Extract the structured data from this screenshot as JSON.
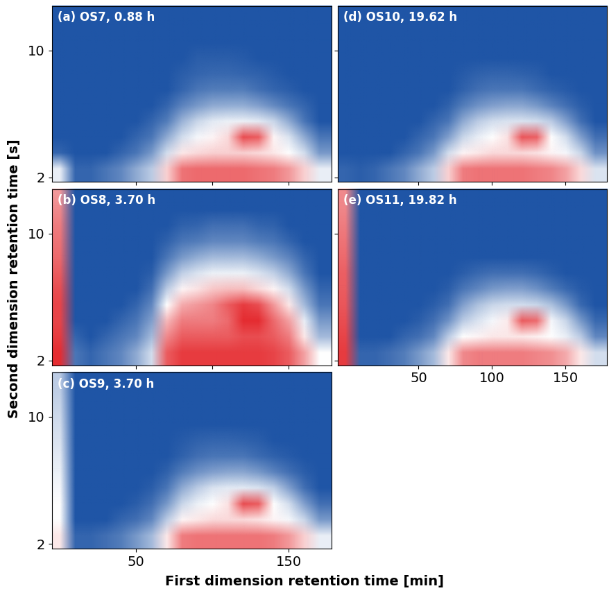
{
  "x_label": "First dimension retention time [min]",
  "y_label": "Second dimension retention time [s]",
  "chart_data": [
    {
      "type": "heatmap",
      "title": "(a) OS7, 0.88 h",
      "tick_labels": "y",
      "xlim": [
        -5,
        178
      ],
      "ylim": [
        1.7,
        12.8
      ],
      "xticks": [
        50,
        100,
        150
      ],
      "yticks": [
        2,
        10
      ],
      "zlim": [
        0,
        100
      ],
      "x_bins": [
        -5,
        5,
        15,
        25,
        35,
        45,
        55,
        65,
        75,
        85,
        95,
        105,
        115,
        125,
        135,
        145,
        155,
        165,
        175
      ],
      "y_bins": [
        2,
        3,
        4,
        5,
        6,
        7,
        8,
        9,
        10,
        11,
        12,
        13
      ],
      "cells": [
        [
          45,
          5,
          5,
          10,
          15,
          25,
          35,
          60,
          80,
          82,
          82,
          82,
          82,
          80,
          78,
          72,
          60,
          45
        ],
        [
          5,
          0,
          0,
          0,
          5,
          10,
          20,
          40,
          55,
          58,
          60,
          60,
          60,
          58,
          55,
          50,
          40,
          20
        ],
        [
          0,
          0,
          0,
          0,
          0,
          5,
          10,
          25,
          40,
          48,
          52,
          58,
          88,
          85,
          52,
          42,
          25,
          10
        ],
        [
          0,
          0,
          0,
          0,
          0,
          0,
          5,
          12,
          28,
          38,
          44,
          46,
          46,
          44,
          38,
          25,
          10,
          0
        ],
        [
          0,
          0,
          0,
          0,
          0,
          0,
          0,
          5,
          14,
          20,
          25,
          26,
          26,
          22,
          16,
          10,
          5,
          0
        ],
        [
          0,
          0,
          0,
          0,
          0,
          0,
          0,
          0,
          5,
          10,
          12,
          12,
          12,
          8,
          5,
          3,
          0,
          0
        ],
        [
          0,
          0,
          0,
          0,
          0,
          0,
          0,
          0,
          3,
          5,
          6,
          6,
          5,
          4,
          2,
          0,
          0,
          0
        ],
        [
          0,
          0,
          0,
          0,
          0,
          0,
          0,
          0,
          0,
          3,
          3,
          3,
          2,
          0,
          0,
          0,
          0,
          0
        ],
        [
          0,
          0,
          0,
          0,
          0,
          0,
          0,
          0,
          0,
          0,
          0,
          0,
          0,
          0,
          0,
          0,
          0,
          0
        ],
        [
          0,
          0,
          0,
          0,
          0,
          0,
          0,
          0,
          0,
          0,
          0,
          0,
          0,
          0,
          0,
          0,
          0,
          0
        ],
        [
          0,
          0,
          0,
          0,
          0,
          0,
          0,
          0,
          0,
          0,
          0,
          0,
          0,
          0,
          0,
          0,
          0,
          0
        ]
      ]
    },
    {
      "type": "heatmap",
      "title": "(b) OS8, 3.70 h",
      "tick_labels": "y",
      "xlim": [
        -5,
        178
      ],
      "ylim": [
        1.7,
        12.8
      ],
      "xticks": [
        50,
        100,
        150
      ],
      "yticks": [
        2,
        10
      ],
      "zlim": [
        0,
        100
      ],
      "x_bins": [
        -5,
        5,
        15,
        25,
        35,
        45,
        55,
        65,
        75,
        85,
        95,
        105,
        115,
        125,
        135,
        145,
        155,
        165,
        175
      ],
      "y_bins": [
        2,
        3,
        4,
        5,
        6,
        7,
        8,
        9,
        10,
        11,
        12,
        13
      ],
      "cells": [
        [
          95,
          10,
          5,
          10,
          15,
          25,
          40,
          85,
          92,
          92,
          92,
          92,
          92,
          92,
          90,
          85,
          70,
          50
        ],
        [
          92,
          5,
          0,
          5,
          10,
          15,
          30,
          75,
          85,
          85,
          85,
          85,
          88,
          88,
          85,
          78,
          55,
          30
        ],
        [
          90,
          0,
          0,
          0,
          5,
          10,
          22,
          65,
          78,
          78,
          78,
          82,
          95,
          95,
          82,
          70,
          45,
          20
        ],
        [
          90,
          0,
          0,
          0,
          0,
          5,
          15,
          50,
          68,
          72,
          76,
          85,
          92,
          88,
          72,
          55,
          30,
          10
        ],
        [
          88,
          0,
          0,
          0,
          0,
          0,
          8,
          35,
          52,
          56,
          62,
          64,
          64,
          58,
          52,
          40,
          20,
          5
        ],
        [
          85,
          0,
          0,
          0,
          0,
          0,
          3,
          20,
          36,
          42,
          46,
          46,
          46,
          42,
          36,
          25,
          10,
          0
        ],
        [
          82,
          0,
          0,
          0,
          0,
          0,
          0,
          10,
          20,
          26,
          30,
          30,
          30,
          26,
          20,
          14,
          5,
          0
        ],
        [
          80,
          0,
          0,
          0,
          0,
          0,
          0,
          4,
          10,
          12,
          15,
          15,
          15,
          12,
          10,
          5,
          0,
          0
        ],
        [
          78,
          0,
          0,
          0,
          0,
          0,
          0,
          0,
          4,
          5,
          8,
          8,
          8,
          5,
          4,
          0,
          0,
          0
        ],
        [
          75,
          0,
          0,
          0,
          0,
          0,
          0,
          0,
          0,
          0,
          0,
          0,
          0,
          0,
          0,
          0,
          0,
          0
        ],
        [
          72,
          0,
          0,
          0,
          0,
          0,
          0,
          0,
          0,
          0,
          0,
          0,
          0,
          0,
          0,
          0,
          0,
          0
        ]
      ]
    },
    {
      "type": "heatmap",
      "title": "(c) OS9, 3.70 h",
      "tick_labels": true,
      "xlim": [
        -5,
        178
      ],
      "ylim": [
        1.7,
        12.8
      ],
      "xticks": [
        50,
        150
      ],
      "yticks": [
        2,
        10
      ],
      "zlim": [
        0,
        100
      ],
      "x_bins": [
        -5,
        5,
        15,
        25,
        35,
        45,
        55,
        65,
        75,
        85,
        95,
        105,
        115,
        125,
        135,
        145,
        155,
        165,
        175
      ],
      "y_bins": [
        2,
        3,
        4,
        5,
        6,
        7,
        8,
        9,
        10,
        11,
        12,
        13
      ],
      "cells": [
        [
          55,
          5,
          5,
          8,
          12,
          20,
          30,
          55,
          78,
          80,
          80,
          80,
          80,
          80,
          78,
          72,
          60,
          45
        ],
        [
          50,
          0,
          0,
          0,
          5,
          8,
          15,
          35,
          52,
          55,
          58,
          58,
          58,
          56,
          52,
          48,
          38,
          20
        ],
        [
          50,
          0,
          0,
          0,
          0,
          3,
          8,
          20,
          38,
          46,
          50,
          56,
          88,
          85,
          50,
          40,
          22,
          8
        ],
        [
          48,
          0,
          0,
          0,
          0,
          0,
          3,
          10,
          25,
          35,
          42,
          44,
          44,
          42,
          36,
          22,
          8,
          0
        ],
        [
          46,
          0,
          0,
          0,
          0,
          0,
          0,
          4,
          12,
          18,
          22,
          24,
          24,
          20,
          14,
          8,
          3,
          0
        ],
        [
          44,
          0,
          0,
          0,
          0,
          0,
          0,
          0,
          4,
          8,
          10,
          10,
          10,
          7,
          4,
          2,
          0,
          0
        ],
        [
          42,
          0,
          0,
          0,
          0,
          0,
          0,
          0,
          2,
          4,
          5,
          5,
          4,
          3,
          0,
          0,
          0,
          0
        ],
        [
          40,
          0,
          0,
          0,
          0,
          0,
          0,
          0,
          0,
          0,
          0,
          0,
          0,
          0,
          0,
          0,
          0,
          0
        ],
        [
          38,
          0,
          0,
          0,
          0,
          0,
          0,
          0,
          0,
          0,
          0,
          0,
          0,
          0,
          0,
          0,
          0,
          0
        ],
        [
          36,
          0,
          0,
          0,
          0,
          0,
          0,
          0,
          0,
          0,
          0,
          0,
          0,
          0,
          0,
          0,
          0,
          0
        ],
        [
          35,
          0,
          0,
          0,
          0,
          0,
          0,
          0,
          0,
          0,
          0,
          0,
          0,
          0,
          0,
          0,
          0,
          0
        ]
      ]
    },
    {
      "type": "heatmap",
      "title": "(d) OS10, 19.62 h",
      "tick_labels": false,
      "xlim": [
        -5,
        178
      ],
      "ylim": [
        1.7,
        12.8
      ],
      "xticks": [
        50,
        100,
        150
      ],
      "yticks": [
        2,
        10
      ],
      "zlim": [
        0,
        100
      ],
      "x_bins": [
        -5,
        5,
        15,
        25,
        35,
        45,
        55,
        65,
        75,
        85,
        95,
        105,
        115,
        125,
        135,
        145,
        155,
        165,
        175
      ],
      "y_bins": [
        2,
        3,
        4,
        5,
        6,
        7,
        8,
        9,
        10,
        11,
        12,
        13
      ],
      "cells": [
        [
          5,
          3,
          5,
          10,
          15,
          25,
          35,
          60,
          78,
          80,
          80,
          80,
          80,
          78,
          76,
          70,
          58,
          42
        ],
        [
          0,
          0,
          0,
          0,
          5,
          10,
          20,
          40,
          52,
          55,
          58,
          58,
          58,
          56,
          52,
          48,
          38,
          18
        ],
        [
          0,
          0,
          0,
          0,
          0,
          5,
          10,
          22,
          38,
          45,
          50,
          56,
          86,
          84,
          50,
          40,
          22,
          8
        ],
        [
          0,
          0,
          0,
          0,
          0,
          0,
          5,
          10,
          25,
          35,
          40,
          42,
          42,
          40,
          35,
          22,
          8,
          0
        ],
        [
          0,
          0,
          0,
          0,
          0,
          0,
          0,
          4,
          12,
          18,
          22,
          24,
          24,
          20,
          14,
          8,
          3,
          0
        ],
        [
          0,
          0,
          0,
          0,
          0,
          0,
          0,
          0,
          4,
          8,
          10,
          10,
          10,
          7,
          4,
          2,
          0,
          0
        ],
        [
          0,
          0,
          0,
          0,
          0,
          0,
          0,
          0,
          2,
          4,
          5,
          5,
          4,
          3,
          0,
          0,
          0,
          0
        ],
        [
          0,
          0,
          0,
          0,
          0,
          0,
          0,
          0,
          0,
          0,
          0,
          0,
          0,
          0,
          0,
          0,
          0,
          0
        ],
        [
          0,
          0,
          0,
          0,
          0,
          0,
          0,
          0,
          0,
          0,
          0,
          0,
          0,
          0,
          0,
          0,
          0,
          0
        ],
        [
          0,
          0,
          0,
          0,
          0,
          0,
          0,
          0,
          0,
          0,
          0,
          0,
          0,
          0,
          0,
          0,
          0,
          0
        ],
        [
          0,
          0,
          0,
          0,
          0,
          0,
          0,
          0,
          0,
          0,
          0,
          0,
          0,
          0,
          0,
          0,
          0,
          0
        ]
      ]
    },
    {
      "type": "heatmap",
      "title": "(e) OS11, 19.82 h",
      "tick_labels": "x",
      "xlim": [
        -5,
        178
      ],
      "ylim": [
        1.7,
        12.8
      ],
      "xticks": [
        50,
        100,
        150
      ],
      "yticks": [
        2,
        10
      ],
      "zlim": [
        0,
        100
      ],
      "x_bins": [
        -5,
        5,
        15,
        25,
        35,
        45,
        55,
        65,
        75,
        85,
        95,
        105,
        115,
        125,
        135,
        145,
        155,
        165,
        175
      ],
      "y_bins": [
        2,
        3,
        4,
        5,
        6,
        7,
        8,
        9,
        10,
        11,
        12,
        13
      ],
      "cells": [
        [
          92,
          5,
          5,
          8,
          12,
          20,
          30,
          55,
          75,
          78,
          78,
          78,
          78,
          76,
          74,
          68,
          55,
          40
        ],
        [
          90,
          0,
          0,
          0,
          5,
          8,
          15,
          35,
          50,
          52,
          55,
          55,
          55,
          53,
          50,
          45,
          35,
          15
        ],
        [
          88,
          0,
          0,
          0,
          0,
          3,
          8,
          18,
          35,
          42,
          48,
          54,
          85,
          82,
          48,
          38,
          20,
          6
        ],
        [
          86,
          0,
          0,
          0,
          0,
          0,
          3,
          8,
          22,
          32,
          38,
          40,
          40,
          38,
          32,
          20,
          6,
          0
        ],
        [
          85,
          0,
          0,
          0,
          0,
          0,
          0,
          3,
          10,
          15,
          20,
          22,
          22,
          18,
          12,
          6,
          2,
          0
        ],
        [
          84,
          0,
          0,
          0,
          0,
          0,
          0,
          0,
          3,
          6,
          8,
          8,
          8,
          6,
          3,
          0,
          0,
          0
        ],
        [
          82,
          0,
          0,
          0,
          0,
          0,
          0,
          0,
          0,
          0,
          0,
          0,
          0,
          0,
          0,
          0,
          0,
          0
        ],
        [
          80,
          0,
          0,
          0,
          0,
          0,
          0,
          0,
          0,
          0,
          0,
          0,
          0,
          0,
          0,
          0,
          0,
          0
        ],
        [
          78,
          0,
          0,
          0,
          0,
          0,
          0,
          0,
          0,
          0,
          0,
          0,
          0,
          0,
          0,
          0,
          0,
          0
        ],
        [
          76,
          0,
          0,
          0,
          0,
          0,
          0,
          0,
          0,
          0,
          0,
          0,
          0,
          0,
          0,
          0,
          0,
          0
        ],
        [
          75,
          0,
          0,
          0,
          0,
          0,
          0,
          0,
          0,
          0,
          0,
          0,
          0,
          0,
          0,
          0,
          0,
          0
        ]
      ]
    }
  ]
}
